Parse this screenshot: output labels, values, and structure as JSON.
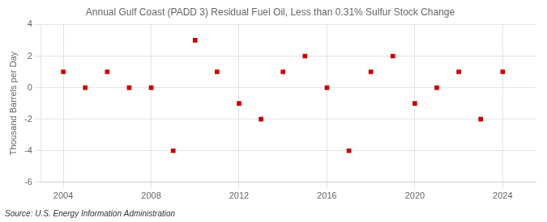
{
  "chart_data": {
    "type": "scatter",
    "title": "Annual Gulf Coast (PADD 3) Residual Fuel Oil, Less than 0.31% Sulfur Stock Change",
    "y_label": "Thousand Barrels per Day",
    "source": "Source: U.S. Energy Information Administration",
    "x": [
      2004,
      2005,
      2006,
      2007,
      2008,
      2009,
      2010,
      2011,
      2012,
      2013,
      2014,
      2015,
      2016,
      2017,
      2018,
      2019,
      2020,
      2021,
      2022,
      2023,
      2024
    ],
    "values": [
      1,
      0,
      1,
      0,
      0,
      -4,
      3,
      1,
      -1,
      -2,
      1,
      2,
      0,
      -4,
      1,
      2,
      -1,
      0,
      1,
      -2,
      1
    ],
    "color": "#cc0000",
    "marker": "square",
    "xlim": [
      2003.0,
      2025.5
    ],
    "ylim": [
      -6,
      4
    ],
    "xticks": [
      2004,
      2008,
      2012,
      2016,
      2020,
      2024
    ],
    "yticks": [
      -6,
      -4,
      -2,
      0,
      2,
      4
    ],
    "grid": true
  }
}
